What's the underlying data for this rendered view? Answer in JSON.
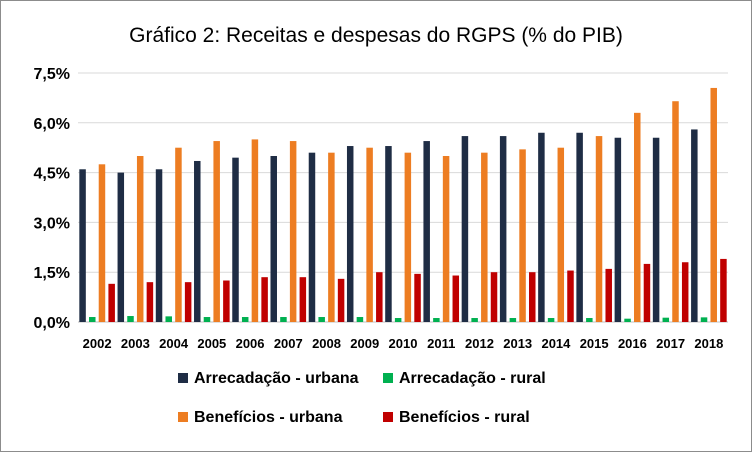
{
  "chart_data": {
    "type": "bar",
    "title": "Gráfico 2: Receitas e despesas do RGPS (% do PIB)",
    "xlabel": "",
    "ylabel": "",
    "ylim": [
      0,
      7.5
    ],
    "y_ticks": [
      0,
      1.5,
      3.0,
      4.5,
      6.0,
      7.5
    ],
    "y_tick_labels": [
      "0,0%",
      "1,5%",
      "3,0%",
      "4,5%",
      "6,0%",
      "7,5%"
    ],
    "grid": true,
    "legend_position": "bottom",
    "categories": [
      "2002",
      "2003",
      "2004",
      "2005",
      "2006",
      "2007",
      "2008",
      "2009",
      "2010",
      "2011",
      "2012",
      "2013",
      "2014",
      "2015",
      "2016",
      "2017",
      "2018"
    ],
    "series": [
      {
        "name": "Arrecadação - urbana",
        "color": "#1f2d45",
        "values": [
          4.6,
          4.5,
          4.6,
          4.85,
          4.95,
          5.0,
          5.1,
          5.3,
          5.3,
          5.45,
          5.6,
          5.6,
          5.7,
          5.7,
          5.55,
          5.55,
          5.8
        ]
      },
      {
        "name": "Arrecadação - rural",
        "color": "#00b050",
        "values": [
          0.15,
          0.18,
          0.17,
          0.15,
          0.15,
          0.15,
          0.15,
          0.15,
          0.12,
          0.12,
          0.12,
          0.12,
          0.12,
          0.12,
          0.1,
          0.13,
          0.14
        ]
      },
      {
        "name": "Benefícios - urbana",
        "color": "#ed7d22",
        "values": [
          4.75,
          5.0,
          5.25,
          5.45,
          5.5,
          5.45,
          5.1,
          5.25,
          5.1,
          5.0,
          5.1,
          5.2,
          5.25,
          5.6,
          6.3,
          6.65,
          7.05
        ]
      },
      {
        "name": "Benefícios - rural",
        "color": "#c00000",
        "values": [
          1.15,
          1.2,
          1.2,
          1.25,
          1.35,
          1.35,
          1.3,
          1.5,
          1.45,
          1.4,
          1.5,
          1.5,
          1.55,
          1.6,
          1.75,
          1.8,
          1.9
        ]
      }
    ]
  }
}
